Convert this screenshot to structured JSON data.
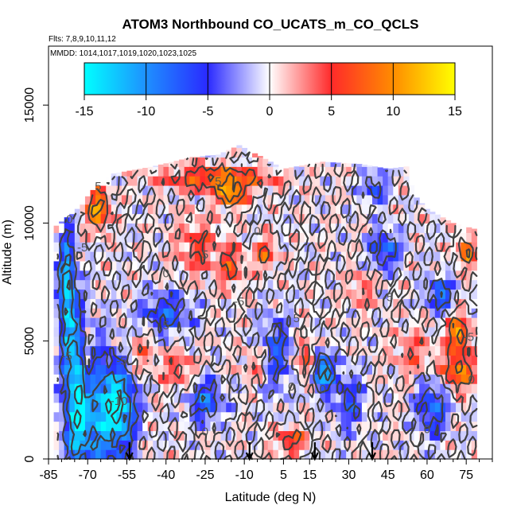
{
  "chart_data": {
    "type": "heatmap",
    "title": "ATOM3 Northbound CO_UCATS_m_CO_QCLS",
    "subtitle_flights": "Flts: 7,8,9,10,11,12",
    "subtitle_dates": "MMDD: 1014,1017,1019,1020,1023,1025",
    "xlabel": "Latitude (deg N)",
    "ylabel": "Altitude (m)",
    "xlim": [
      -85,
      85
    ],
    "ylim": [
      0,
      17500
    ],
    "x_ticks": [
      -85,
      -70,
      -55,
      -40,
      -25,
      -10,
      5,
      15,
      30,
      45,
      60,
      75
    ],
    "y_ticks": [
      0,
      5000,
      10000,
      15000
    ],
    "colorbar": {
      "range": [
        -15,
        15
      ],
      "ticks": [
        -15,
        -10,
        -5,
        0,
        5,
        10,
        15
      ],
      "colors": [
        "#00ffff",
        "#1e90ff",
        "#2a2aff",
        "#ffffff",
        "#ff2a2a",
        "#ff8c00",
        "#ffff00"
      ]
    },
    "contour_labels": [
      "0",
      "5",
      "5",
      "0",
      "0",
      "0",
      "-5",
      "0",
      "0",
      "0",
      "5",
      "5",
      "5",
      "-10",
      "-5",
      "-5",
      "-5",
      "0",
      "0",
      "-5",
      "-5"
    ],
    "flight_arrows_lat": [
      -54,
      -8,
      17,
      39
    ]
  },
  "colors": {
    "frame": "#000000",
    "contour": "#404040",
    "contour_label": "#555555"
  }
}
